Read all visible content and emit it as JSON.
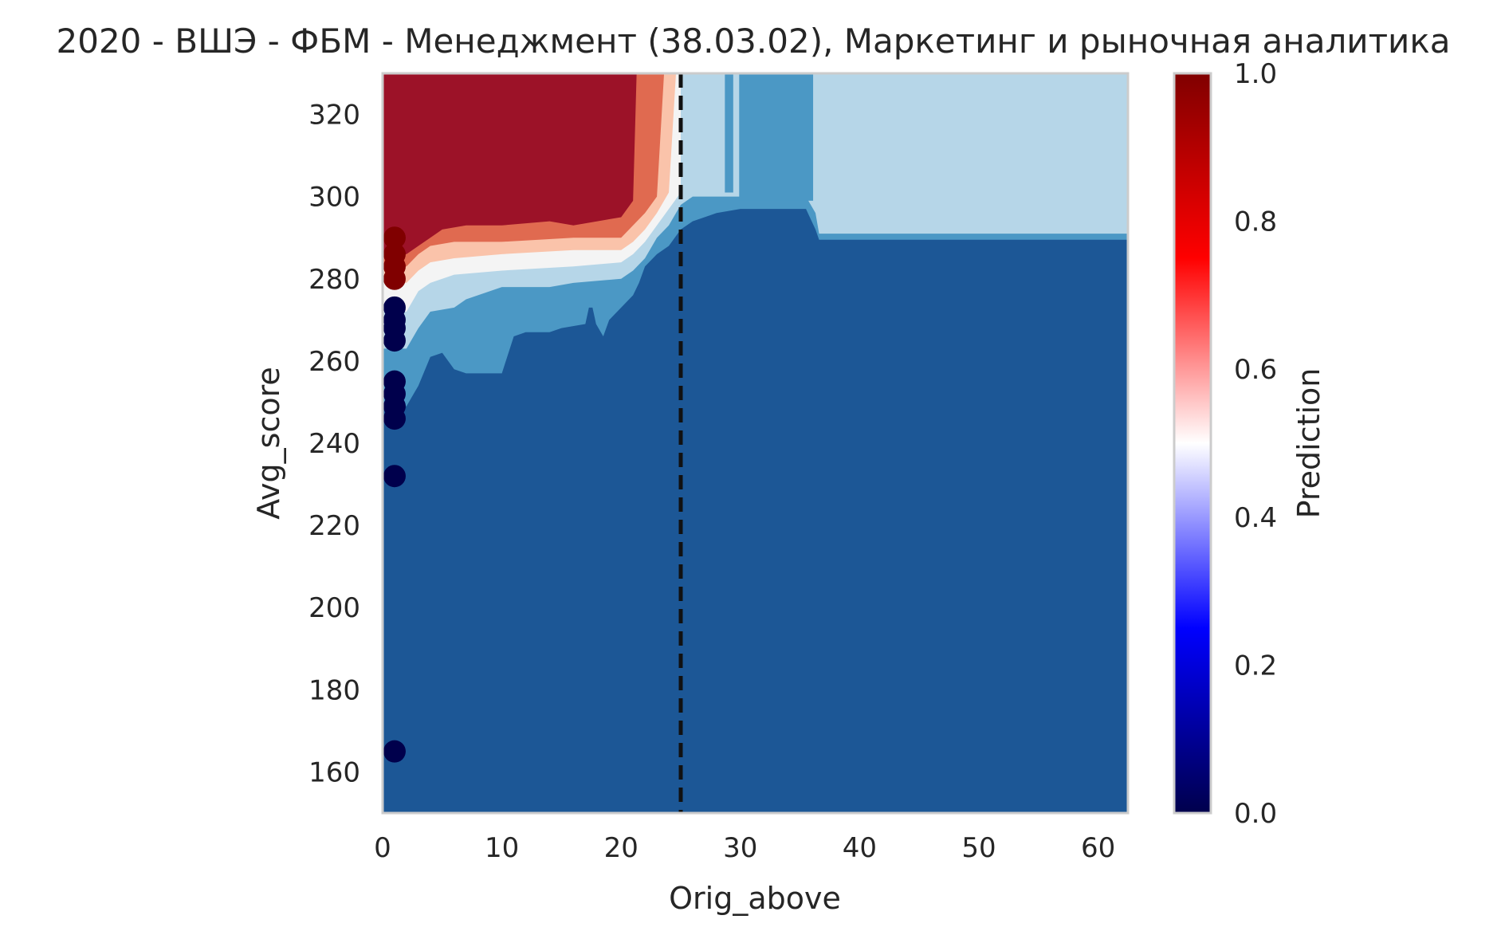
{
  "chart_data": {
    "type": "heatmap",
    "title": "2020 - ВШЭ - ФБМ - Менеджмент (38.03.02), Маркетинг и рыночная аналитика",
    "xlabel": "Orig_above",
    "ylabel": "Avg_score",
    "xlim": [
      0,
      62.5
    ],
    "ylim": [
      150,
      330
    ],
    "xticks": [
      "0",
      "10",
      "20",
      "30",
      "40",
      "50",
      "60"
    ],
    "yticks": [
      "160",
      "180",
      "200",
      "220",
      "240",
      "260",
      "280",
      "300",
      "320"
    ],
    "grid": false,
    "threshold_line": {
      "x": 25,
      "style": "dashed",
      "color": "#111111"
    },
    "colorbar": {
      "label": "Prediction",
      "range": [
        0,
        1
      ],
      "ticks": [
        "0.0",
        "0.2",
        "0.4",
        "0.6",
        "0.8",
        "1.0"
      ],
      "colormap": "seismic",
      "stops": [
        {
          "v": 0.0,
          "color": "#00004c"
        },
        {
          "v": 0.25,
          "color": "#0000ff"
        },
        {
          "v": 0.5,
          "color": "#ffffff"
        },
        {
          "v": 0.75,
          "color": "#ff0000"
        },
        {
          "v": 1.0,
          "color": "#800000"
        }
      ]
    },
    "contour_levels": [
      {
        "range": "0.0-0.2",
        "color": "#1c5796"
      },
      {
        "range": "0.2-0.4",
        "color": "#4b98c5"
      },
      {
        "range": "0.4-0.5",
        "color": "#b6d6e8"
      },
      {
        "range": "0.5-0.6",
        "color": "#f4f4f4"
      },
      {
        "range": "0.6-0.7",
        "color": "#fac3aa"
      },
      {
        "range": "0.7-0.8",
        "color": "#e06a50"
      },
      {
        "range": "0.8-1.0",
        "color": "#9c1228"
      }
    ],
    "boundaries": {
      "b02": [
        [
          2,
          249
        ],
        [
          3,
          254
        ],
        [
          4,
          261
        ],
        [
          5,
          262
        ],
        [
          6,
          258
        ],
        [
          7,
          257
        ],
        [
          10,
          257
        ],
        [
          11,
          266
        ],
        [
          12,
          267
        ],
        [
          14,
          267
        ],
        [
          15,
          268
        ],
        [
          17,
          269
        ],
        [
          17.3,
          273
        ],
        [
          17.6,
          273
        ],
        [
          17.9,
          269
        ],
        [
          18.5,
          266
        ],
        [
          19,
          270
        ],
        [
          20,
          273
        ],
        [
          21,
          276
        ],
        [
          21.5,
          279
        ],
        [
          22,
          283
        ],
        [
          23,
          286
        ],
        [
          24,
          288
        ],
        [
          25,
          292
        ],
        [
          26,
          294
        ],
        [
          28,
          296
        ],
        [
          30,
          297
        ],
        [
          35.5,
          297
        ],
        [
          36.3,
          292
        ],
        [
          36.6,
          289.5
        ],
        [
          62.5,
          289.5
        ]
      ],
      "b04": [
        [
          2,
          263
        ],
        [
          3,
          268
        ],
        [
          4,
          272
        ],
        [
          6,
          273
        ],
        [
          7,
          275
        ],
        [
          10,
          278
        ],
        [
          14,
          278
        ],
        [
          16,
          279
        ],
        [
          20,
          280
        ],
        [
          21,
          282
        ],
        [
          22,
          285
        ],
        [
          23,
          290
        ],
        [
          24,
          293
        ],
        [
          25,
          298
        ],
        [
          26,
          300
        ],
        [
          28,
          300
        ],
        [
          30,
          300
        ],
        [
          35.5,
          300
        ],
        [
          36.3,
          296
        ],
        [
          36.6,
          291
        ],
        [
          62.5,
          291
        ]
      ],
      "b05": [
        [
          2,
          272
        ],
        [
          3,
          277
        ],
        [
          4,
          279
        ],
        [
          6,
          281
        ],
        [
          10,
          282
        ],
        [
          16,
          283
        ],
        [
          20,
          284
        ],
        [
          21,
          286
        ],
        [
          22,
          289
        ],
        [
          23,
          293
        ],
        [
          24,
          297
        ],
        [
          25,
          301
        ]
      ],
      "b06": [
        [
          2,
          279
        ],
        [
          3,
          282
        ],
        [
          4,
          284
        ],
        [
          6,
          285
        ],
        [
          10,
          286
        ],
        [
          16,
          287
        ],
        [
          20,
          287
        ],
        [
          21,
          289
        ],
        [
          22,
          292
        ],
        [
          23,
          296
        ],
        [
          24,
          301
        ],
        [
          24.6,
          330
        ]
      ],
      "b07": [
        [
          2,
          283
        ],
        [
          3,
          286
        ],
        [
          4,
          288
        ],
        [
          6,
          289
        ],
        [
          10,
          289
        ],
        [
          16,
          290
        ],
        [
          20,
          290
        ],
        [
          21,
          293
        ],
        [
          22,
          296
        ],
        [
          23,
          300
        ],
        [
          23.6,
          330
        ]
      ],
      "b08": [
        [
          2,
          286
        ],
        [
          3,
          288
        ],
        [
          4,
          290
        ],
        [
          5,
          292
        ],
        [
          7,
          293
        ],
        [
          10,
          293
        ],
        [
          14,
          294
        ],
        [
          16,
          293
        ],
        [
          18,
          294
        ],
        [
          20,
          295
        ],
        [
          21,
          299
        ],
        [
          21.3,
          330
        ]
      ]
    },
    "vertical_bands": [
      {
        "x0": 28.7,
        "x1": 29.4,
        "y0": 301,
        "y1": 330,
        "level": "0.2-0.4"
      },
      {
        "x0": 29.9,
        "x1": 36.1,
        "y0": 299,
        "y1": 330,
        "level": "0.2-0.4"
      }
    ],
    "points": {
      "x": [
        1,
        1,
        1,
        1,
        1,
        1,
        1,
        1,
        1,
        1,
        1,
        1,
        1,
        1
      ],
      "y": [
        290,
        286,
        283,
        280,
        273,
        268,
        265,
        255,
        252,
        249,
        246,
        232,
        165,
        270
      ],
      "p": [
        1,
        1,
        1,
        1,
        0,
        0,
        0,
        0,
        0,
        0,
        0,
        0,
        0,
        0
      ]
    }
  }
}
